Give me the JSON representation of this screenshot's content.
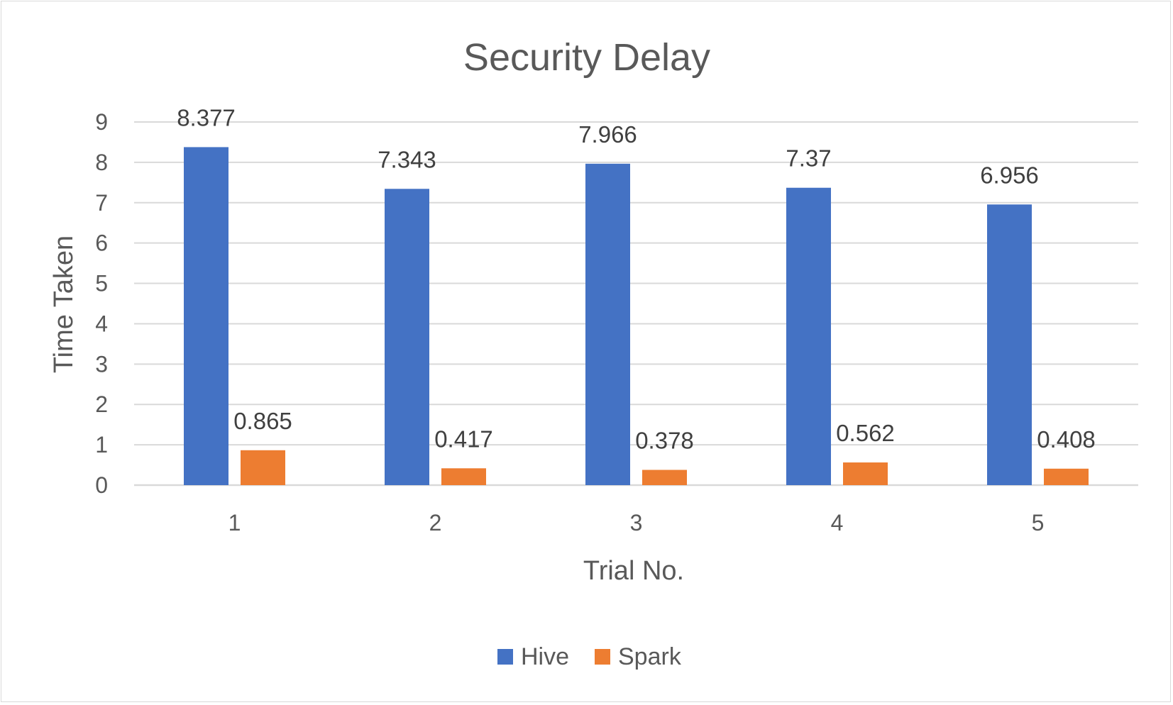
{
  "chart_data": {
    "type": "bar",
    "title": "Security Delay",
    "xlabel": "Trial No.",
    "ylabel": "Time Taken",
    "categories": [
      "1",
      "2",
      "3",
      "4",
      "5"
    ],
    "series": [
      {
        "name": "Hive",
        "color": "#4472c4",
        "values": [
          8.377,
          7.343,
          7.966,
          7.37,
          6.956
        ],
        "labels": [
          "8.377",
          "7.343",
          "7.966",
          "7.37",
          "6.956"
        ]
      },
      {
        "name": "Spark",
        "color": "#ed7d31",
        "values": [
          0.865,
          0.417,
          0.378,
          0.562,
          0.408
        ],
        "labels": [
          "0.865",
          "0.417",
          "0.378",
          "0.562",
          "0.408"
        ]
      }
    ],
    "ylim": [
      0,
      9
    ],
    "yticks": [
      "0",
      "1",
      "2",
      "3",
      "4",
      "5",
      "6",
      "7",
      "8",
      "9"
    ],
    "grid": true,
    "legend_position": "bottom"
  }
}
